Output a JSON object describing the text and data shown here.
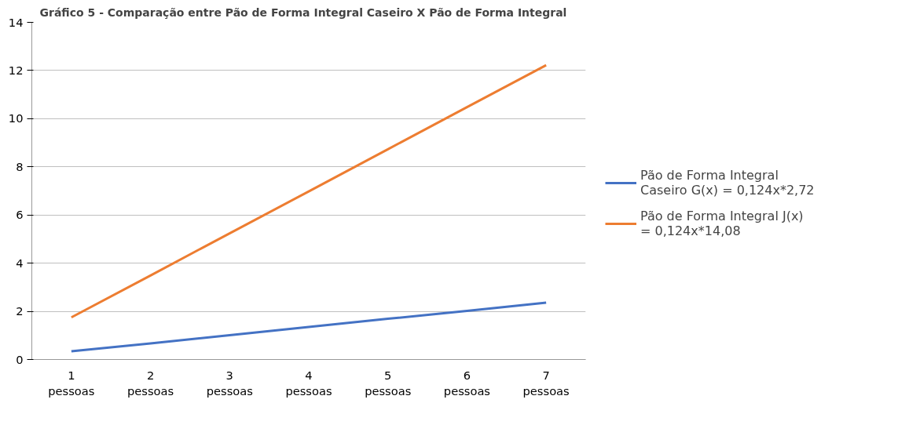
{
  "chart_data": {
    "type": "line",
    "title": "Gráfico 5 - Comparação entre Pão de Forma Integral Caseiro X Pão de Forma Integral",
    "categories": [
      "1\npessoas",
      "2\npessoas",
      "3\npessoas",
      "4\npessoas",
      "5\npessoas",
      "6\npessoas",
      "7\npessoas"
    ],
    "series": [
      {
        "name": "Pão de Forma Integral Caseiro G(x) = 0,124x*2,72",
        "color": "#4472c4",
        "values": [
          0.34,
          0.67,
          1.01,
          1.35,
          1.69,
          2.02,
          2.36
        ]
      },
      {
        "name": "Pão de Forma Integral J(x) = 0,124x*14,08",
        "color": "#ed7d31",
        "values": [
          1.75,
          3.49,
          5.24,
          6.98,
          8.73,
          10.48,
          12.22
        ]
      }
    ],
    "ylim": [
      0,
      14
    ],
    "yticks": [
      0,
      2,
      4,
      6,
      8,
      10,
      12,
      14
    ],
    "grid": "y",
    "legend": "right",
    "marker": "none",
    "line_style": "solid"
  }
}
